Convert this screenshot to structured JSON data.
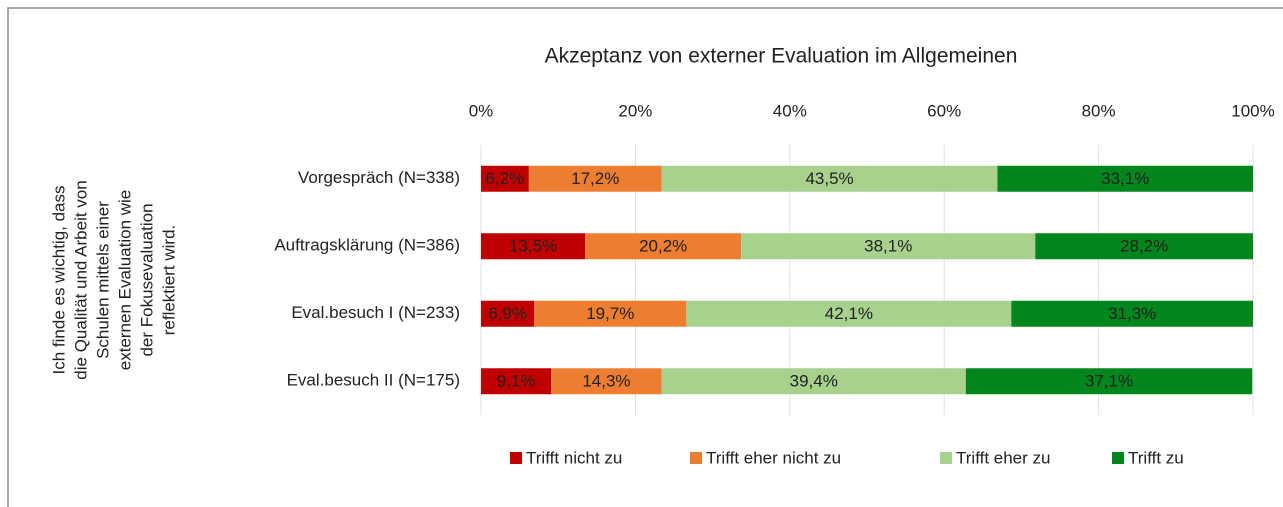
{
  "chart_data": {
    "type": "bar",
    "orientation": "horizontal",
    "stacked": true,
    "title": "Akzeptanz von externer Evaluation im Allgemeinen",
    "group_label": [
      "Ich finde es wichtig, dass",
      "die Qualität und Arbeit von",
      "Schulen mittels einer",
      "externen Evaluation wie",
      "der Fokusevaluation",
      "reflektiert wird."
    ],
    "categories": [
      "Vorgespräch (N=338)",
      "Auftragsklärung (N=386)",
      "Eval.besuch I (N=233)",
      "Eval.besuch II (N=175)"
    ],
    "series": [
      {
        "name": "Trifft nicht zu",
        "color": "#c00000",
        "values": [
          6.2,
          13.5,
          6.9,
          9.1
        ],
        "value_labels": [
          "6,2%",
          "13,5%",
          "6,9%",
          "9,1%"
        ]
      },
      {
        "name": "Trifft eher nicht zu",
        "color": "#ed7d31",
        "values": [
          17.2,
          20.2,
          19.7,
          14.3
        ],
        "value_labels": [
          "17,2%",
          "20,2%",
          "19,7%",
          "14,3%"
        ]
      },
      {
        "name": "Trifft eher zu",
        "color": "#a9d18e",
        "values": [
          43.5,
          38.1,
          42.1,
          39.4
        ],
        "value_labels": [
          "43,5%",
          "38,1%",
          "42,1%",
          "39,4%"
        ]
      },
      {
        "name": "Trifft zu",
        "color": "#00861c",
        "values": [
          33.1,
          28.2,
          31.3,
          37.1
        ],
        "value_labels": [
          "33,1%",
          "28,2%",
          "31,3%",
          "37,1%"
        ]
      }
    ],
    "xlim": [
      0,
      100
    ],
    "xticks": [
      {
        "value": 0,
        "label": "0%"
      },
      {
        "value": 20,
        "label": "20%"
      },
      {
        "value": 40,
        "label": "40%"
      },
      {
        "value": 60,
        "label": "60%"
      },
      {
        "value": 80,
        "label": "80%"
      },
      {
        "value": 100,
        "label": "100%"
      }
    ],
    "grid": true,
    "legend": "bottom"
  }
}
